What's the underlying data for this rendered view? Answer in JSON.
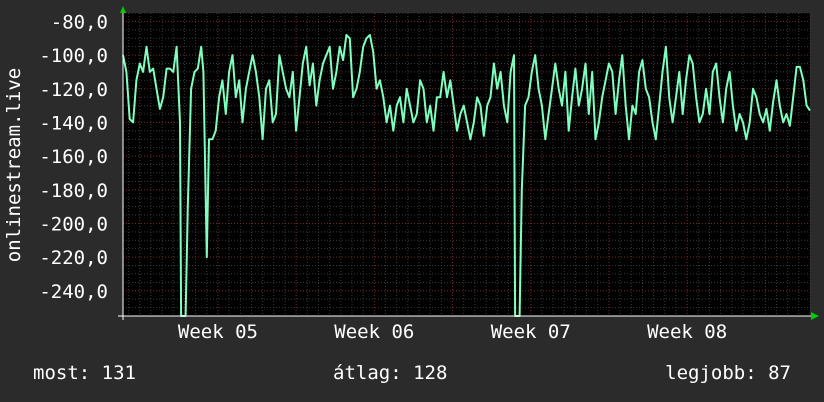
{
  "chart_data": {
    "type": "line",
    "ylabel": "onlinestream.live",
    "ylim": [
      -255,
      -75
    ],
    "y_ticks": [
      "-80,0",
      "-100,0",
      "-120,0",
      "-140,0",
      "-160,0",
      "-180,0",
      "-200,0",
      "-220,0",
      "-240,0"
    ],
    "y_tick_values": [
      -80,
      -100,
      -120,
      -140,
      -160,
      -180,
      -200,
      -220,
      -240
    ],
    "x_ticks": [
      "Week 05",
      "Week 06",
      "Week 07",
      "Week 08"
    ],
    "x_tick_days": [
      7,
      21,
      35,
      49
    ],
    "xlim_days": [
      -1.5,
      60
    ],
    "grid": true,
    "series": [
      {
        "color": "#7fffbf",
        "points": [
          [
            -1.5,
            -100
          ],
          [
            -1.2,
            -110
          ],
          [
            -0.9,
            -138
          ],
          [
            -0.6,
            -140
          ],
          [
            -0.3,
            -115
          ],
          [
            0.0,
            -105
          ],
          [
            0.3,
            -110
          ],
          [
            0.6,
            -95
          ],
          [
            0.9,
            -110
          ],
          [
            1.2,
            -108
          ],
          [
            1.5,
            -120
          ],
          [
            1.8,
            -132
          ],
          [
            2.1,
            -125
          ],
          [
            2.4,
            -108
          ],
          [
            2.7,
            -108
          ],
          [
            3.0,
            -110
          ],
          [
            3.3,
            -95
          ],
          [
            3.6,
            -140
          ],
          [
            3.7,
            -255
          ],
          [
            4.1,
            -255
          ],
          [
            4.3,
            -190
          ],
          [
            4.6,
            -120
          ],
          [
            4.9,
            -110
          ],
          [
            5.2,
            -108
          ],
          [
            5.5,
            -95
          ],
          [
            5.7,
            -110
          ],
          [
            6.0,
            -220
          ],
          [
            6.2,
            -150
          ],
          [
            6.5,
            -150
          ],
          [
            6.8,
            -145
          ],
          [
            7.1,
            -125
          ],
          [
            7.4,
            -115
          ],
          [
            7.7,
            -135
          ],
          [
            8.0,
            -110
          ],
          [
            8.3,
            -100
          ],
          [
            8.6,
            -125
          ],
          [
            8.9,
            -115
          ],
          [
            9.2,
            -140
          ],
          [
            9.5,
            -120
          ],
          [
            9.8,
            -110
          ],
          [
            10.1,
            -100
          ],
          [
            10.4,
            -110
          ],
          [
            10.7,
            -125
          ],
          [
            11.0,
            -150
          ],
          [
            11.3,
            -120
          ],
          [
            11.6,
            -115
          ],
          [
            11.9,
            -140
          ],
          [
            12.2,
            -135
          ],
          [
            12.5,
            -100
          ],
          [
            12.8,
            -110
          ],
          [
            13.1,
            -120
          ],
          [
            13.4,
            -125
          ],
          [
            13.7,
            -110
          ],
          [
            14.0,
            -145
          ],
          [
            14.3,
            -125
          ],
          [
            14.6,
            -105
          ],
          [
            14.9,
            -95
          ],
          [
            15.2,
            -118
          ],
          [
            15.5,
            -105
          ],
          [
            15.8,
            -130
          ],
          [
            16.1,
            -115
          ],
          [
            16.4,
            -105
          ],
          [
            16.7,
            -100
          ],
          [
            17.0,
            -95
          ],
          [
            17.3,
            -120
          ],
          [
            17.6,
            -110
          ],
          [
            17.9,
            -95
          ],
          [
            18.2,
            -103
          ],
          [
            18.5,
            -88
          ],
          [
            18.8,
            -90
          ],
          [
            19.1,
            -125
          ],
          [
            19.4,
            -120
          ],
          [
            19.7,
            -110
          ],
          [
            20.0,
            -95
          ],
          [
            20.3,
            -90
          ],
          [
            20.6,
            -88
          ],
          [
            20.9,
            -98
          ],
          [
            21.2,
            -120
          ],
          [
            21.5,
            -115
          ],
          [
            21.8,
            -125
          ],
          [
            22.1,
            -140
          ],
          [
            22.4,
            -130
          ],
          [
            22.7,
            -145
          ],
          [
            23.0,
            -130
          ],
          [
            23.3,
            -125
          ],
          [
            23.6,
            -140
          ],
          [
            23.9,
            -120
          ],
          [
            24.2,
            -130
          ],
          [
            24.5,
            -140
          ],
          [
            24.8,
            -135
          ],
          [
            25.1,
            -115
          ],
          [
            25.4,
            -120
          ],
          [
            25.7,
            -140
          ],
          [
            26.0,
            -130
          ],
          [
            26.3,
            -145
          ],
          [
            26.6,
            -125
          ],
          [
            26.9,
            -125
          ],
          [
            27.2,
            -110
          ],
          [
            27.5,
            -125
          ],
          [
            27.8,
            -115
          ],
          [
            28.1,
            -130
          ],
          [
            28.4,
            -145
          ],
          [
            28.7,
            -135
          ],
          [
            29.0,
            -130
          ],
          [
            29.3,
            -140
          ],
          [
            29.6,
            -150
          ],
          [
            29.9,
            -140
          ],
          [
            30.2,
            -125
          ],
          [
            30.5,
            -130
          ],
          [
            30.8,
            -148
          ],
          [
            31.1,
            -130
          ],
          [
            31.4,
            -125
          ],
          [
            31.7,
            -105
          ],
          [
            32.0,
            -120
          ],
          [
            32.3,
            -110
          ],
          [
            32.6,
            -130
          ],
          [
            32.9,
            -140
          ],
          [
            33.2,
            -110
          ],
          [
            33.5,
            -100
          ],
          [
            33.6,
            -255
          ],
          [
            34.0,
            -255
          ],
          [
            34.2,
            -180
          ],
          [
            34.5,
            -130
          ],
          [
            34.8,
            -125
          ],
          [
            35.1,
            -110
          ],
          [
            35.4,
            -100
          ],
          [
            35.7,
            -120
          ],
          [
            36.0,
            -130
          ],
          [
            36.3,
            -150
          ],
          [
            36.6,
            -135
          ],
          [
            36.9,
            -120
          ],
          [
            37.2,
            -105
          ],
          [
            37.5,
            -120
          ],
          [
            37.8,
            -130
          ],
          [
            38.1,
            -110
          ],
          [
            38.4,
            -145
          ],
          [
            38.7,
            -125
          ],
          [
            39.0,
            -108
          ],
          [
            39.3,
            -130
          ],
          [
            39.6,
            -120
          ],
          [
            39.9,
            -105
          ],
          [
            40.2,
            -135
          ],
          [
            40.5,
            -110
          ],
          [
            40.8,
            -150
          ],
          [
            41.1,
            -140
          ],
          [
            41.4,
            -125
          ],
          [
            41.7,
            -115
          ],
          [
            42.0,
            -105
          ],
          [
            42.3,
            -110
          ],
          [
            42.6,
            -135
          ],
          [
            42.9,
            -115
          ],
          [
            43.2,
            -100
          ],
          [
            43.5,
            -130
          ],
          [
            43.8,
            -150
          ],
          [
            44.1,
            -130
          ],
          [
            44.4,
            -135
          ],
          [
            44.7,
            -110
          ],
          [
            45.0,
            -103
          ],
          [
            45.3,
            -120
          ],
          [
            45.6,
            -125
          ],
          [
            45.9,
            -140
          ],
          [
            46.2,
            -150
          ],
          [
            46.5,
            -130
          ],
          [
            46.8,
            -110
          ],
          [
            47.1,
            -95
          ],
          [
            47.4,
            -125
          ],
          [
            47.7,
            -140
          ],
          [
            48.0,
            -125
          ],
          [
            48.3,
            -110
          ],
          [
            48.6,
            -135
          ],
          [
            48.9,
            -115
          ],
          [
            49.2,
            -100
          ],
          [
            49.5,
            -105
          ],
          [
            49.8,
            -125
          ],
          [
            50.1,
            -140
          ],
          [
            50.4,
            -135
          ],
          [
            50.7,
            -120
          ],
          [
            51.0,
            -135
          ],
          [
            51.3,
            -110
          ],
          [
            51.6,
            -105
          ],
          [
            51.9,
            -125
          ],
          [
            52.2,
            -140
          ],
          [
            52.5,
            -120
          ],
          [
            52.8,
            -110
          ],
          [
            53.1,
            -130
          ],
          [
            53.4,
            -145
          ],
          [
            53.7,
            -135
          ],
          [
            54.0,
            -140
          ],
          [
            54.3,
            -150
          ],
          [
            54.6,
            -140
          ],
          [
            54.9,
            -120
          ],
          [
            55.2,
            -125
          ],
          [
            55.5,
            -135
          ],
          [
            55.8,
            -140
          ],
          [
            56.1,
            -132
          ],
          [
            56.4,
            -145
          ],
          [
            56.7,
            -128
          ],
          [
            57.0,
            -115
          ],
          [
            57.3,
            -130
          ],
          [
            57.6,
            -140
          ],
          [
            57.9,
            -135
          ],
          [
            58.2,
            -142
          ],
          [
            58.5,
            -125
          ],
          [
            58.8,
            -107
          ],
          [
            59.1,
            -107
          ],
          [
            59.4,
            -115
          ],
          [
            59.7,
            -130
          ],
          [
            60.0,
            -133
          ]
        ]
      }
    ]
  },
  "footer": {
    "current": "most: 131",
    "average": "átlag: 128",
    "best": "legjobb: 87"
  }
}
